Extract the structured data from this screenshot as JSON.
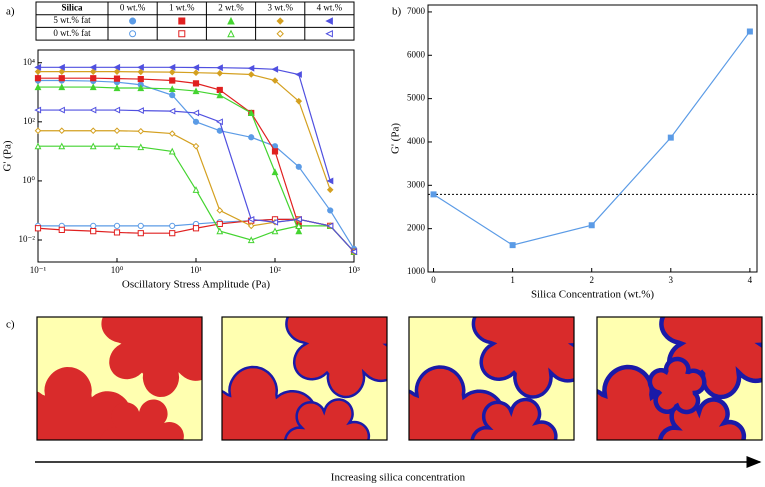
{
  "chart_data": [
    {
      "type": "line",
      "log_x": true,
      "log_y": true,
      "xlabel": "Oscillatory Stress Amplitude (Pa)",
      "ylabel": "G' (Pa)",
      "legend": {
        "title": "Silica",
        "columns": [
          "0 wt.%",
          "1 wt.%",
          "2 wt.%",
          "3 wt.%",
          "4 wt.%"
        ],
        "rows": [
          "5 wt.% fat",
          "0 wt.% fat"
        ]
      },
      "x": [
        0.1,
        0.2,
        0.5,
        1,
        2,
        5,
        10,
        20,
        50,
        100,
        200,
        500,
        1000
      ],
      "xlim": [
        0.1,
        1000
      ],
      "xticks": [
        {
          "value": 0.1,
          "label": "10⁻¹"
        },
        {
          "value": 1,
          "label": "10⁰"
        },
        {
          "value": 10,
          "label": "10¹"
        },
        {
          "value": 100,
          "label": "10²"
        },
        {
          "value": 1000,
          "label": "10³"
        }
      ],
      "ylim": [
        0.0018,
        27000
      ],
      "yticks": [
        {
          "value": 0.01,
          "label": "10⁻²"
        },
        {
          "value": 1,
          "label": "10⁰"
        },
        {
          "value": 100,
          "label": "10²"
        },
        {
          "value": 10000,
          "label": "10⁴"
        }
      ],
      "series": [
        {
          "color": "#5b9be6",
          "marker": "circle",
          "filled": true,
          "values": [
            2500,
            2500,
            2400,
            2200,
            1800,
            800,
            100,
            50,
            30,
            15,
            3,
            0.1,
            0.005
          ]
        },
        {
          "color": "#e02020",
          "marker": "square",
          "filled": true,
          "values": [
            3000,
            3000,
            3000,
            2900,
            2800,
            2500,
            2000,
            1200,
            200,
            10,
            0.03,
            null,
            null
          ]
        },
        {
          "color": "#44d430",
          "marker": "triangle",
          "filled": true,
          "values": [
            1500,
            1500,
            1500,
            1400,
            1400,
            1300,
            1100,
            800,
            200,
            2,
            0.02,
            null,
            null
          ]
        },
        {
          "color": "#d4a020",
          "marker": "diamond",
          "filled": true,
          "values": [
            5000,
            5000,
            5000,
            5000,
            4900,
            4800,
            4600,
            4400,
            4000,
            2500,
            500,
            0.5,
            null
          ]
        },
        {
          "color": "#5050e0",
          "marker": "triangle-left",
          "filled": true,
          "values": [
            7000,
            7000,
            7000,
            7000,
            7000,
            7000,
            6900,
            6800,
            6500,
            6000,
            4000,
            1,
            null
          ]
        },
        {
          "color": "#5b9be6",
          "marker": "circle",
          "filled": false,
          "values": [
            0.03,
            0.03,
            0.03,
            0.03,
            0.03,
            0.03,
            0.035,
            0.04,
            0.045,
            0.05,
            0.05,
            0.03,
            0.004
          ]
        },
        {
          "color": "#e02020",
          "marker": "square",
          "filled": false,
          "values": [
            0.025,
            0.022,
            0.02,
            0.018,
            0.017,
            0.017,
            0.025,
            0.035,
            0.045,
            0.05,
            0.05,
            0.03,
            0.004
          ]
        },
        {
          "color": "#44d430",
          "marker": "triangle",
          "filled": false,
          "values": [
            15,
            15,
            15,
            15,
            14,
            10,
            0.5,
            0.02,
            0.01,
            0.02,
            0.03,
            0.03,
            0.004
          ]
        },
        {
          "color": "#d4a020",
          "marker": "diamond",
          "filled": false,
          "values": [
            50,
            50,
            50,
            50,
            48,
            40,
            15,
            0.1,
            0.03,
            0.04,
            0.05,
            0.03,
            0.004
          ]
        },
        {
          "color": "#5050e0",
          "marker": "triangle-left",
          "filled": false,
          "values": [
            250,
            250,
            250,
            250,
            240,
            230,
            200,
            100,
            0.05,
            0.04,
            0.05,
            0.03,
            0.004
          ]
        }
      ]
    },
    {
      "type": "line",
      "xlabel": "Silica Concentration (wt.%)",
      "ylabel": "G' (Pa)",
      "x": [
        0,
        1,
        2,
        3,
        4
      ],
      "xlim": [
        -0.07,
        4.09
      ],
      "xticks": [
        0,
        1,
        2,
        3,
        4
      ],
      "ylim": [
        1000,
        7160
      ],
      "yticks": [
        1000,
        2000,
        3000,
        4000,
        5000,
        6000,
        7000
      ],
      "reference_line": true,
      "series": [
        {
          "color": "#5b9be6",
          "marker": "square",
          "filled": true,
          "values": [
            2790,
            1620,
            2080,
            4100,
            6550
          ]
        }
      ]
    }
  ],
  "panel_labels": [
    "a)",
    "b)",
    "c)"
  ],
  "diagram": {
    "caption": "Increasing silica concentration"
  }
}
